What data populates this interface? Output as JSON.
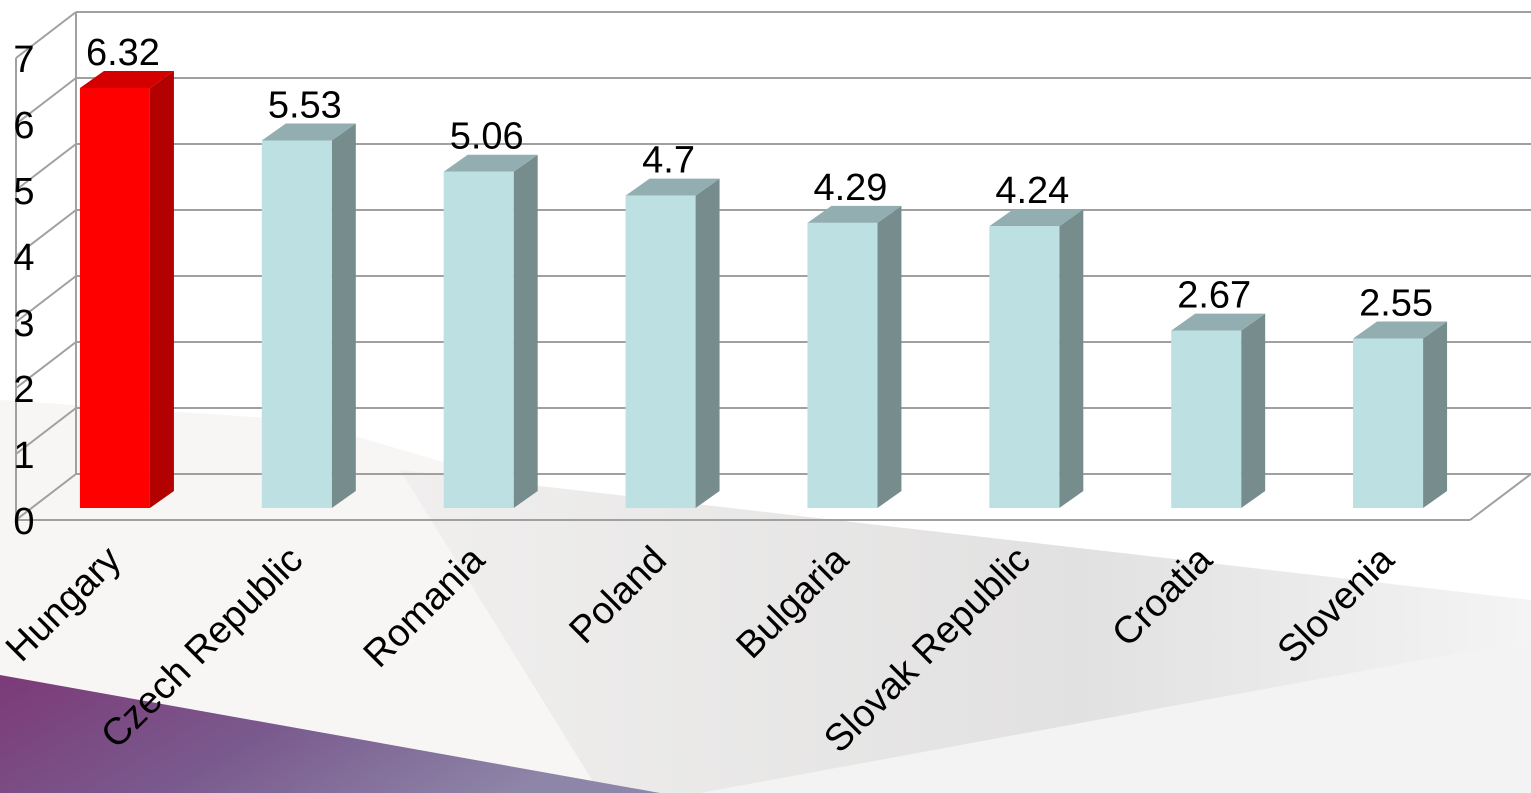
{
  "chart_data": {
    "type": "bar",
    "categories": [
      "Hungary",
      "Czech Republic",
      "Romania",
      "Poland",
      "Bulgaria",
      "Slovak Republic",
      "Croatia",
      "Slovenia"
    ],
    "values": [
      6.32,
      5.53,
      5.06,
      4.7,
      4.29,
      4.24,
      2.67,
      2.55
    ],
    "value_labels": [
      "6.32",
      "5.53",
      "5.06",
      "4.7",
      "4.29",
      "4.24",
      "2.67",
      "2.55"
    ],
    "title": "",
    "xlabel": "",
    "ylabel": "",
    "ylim": [
      0,
      7
    ],
    "yticks": [
      "0",
      "1",
      "2",
      "3",
      "4",
      "5",
      "6",
      "7"
    ],
    "grid": true,
    "legend": "none",
    "style": "3d-column",
    "highlight_category": "Hungary",
    "colors": {
      "highlight_front": "#ff0000",
      "highlight_side": "#b30000",
      "highlight_top": "#d40000",
      "bar_front": "#bde0e2",
      "bar_side": "#768c8d",
      "bar_top": "#93aeb0",
      "gridline": "#a0a0a0",
      "background_purple": "#7c3a78"
    }
  }
}
